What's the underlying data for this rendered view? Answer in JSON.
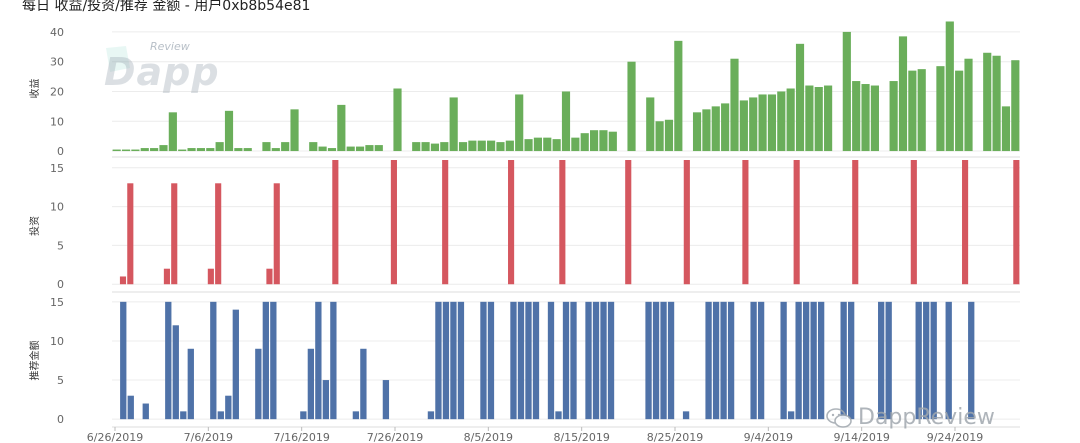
{
  "title": "每日 收益/投资/推荐 金额 - 用户0xb8b54e81",
  "watermark": {
    "top_small": "Review",
    "top_big": "Dapp",
    "bottom": "DappReview"
  },
  "colors": {
    "income": "#6aae5a",
    "invest": "#d5575f",
    "referral": "#4f72a8",
    "grid": "#ececec",
    "axis": "#dcdcdc"
  },
  "chart_data": {
    "type": "bar",
    "x_ticks": [
      "6/26/2019",
      "7/6/2019",
      "7/16/2019",
      "7/26/2019",
      "8/5/2019",
      "8/15/2019",
      "8/25/2019",
      "9/4/2019",
      "9/14/2019",
      "9/24/2019"
    ],
    "panels": [
      {
        "id": "income",
        "ylabel": "收益",
        "yticks": [
          0,
          10,
          20,
          30,
          40
        ],
        "ylim": [
          -2,
          44
        ],
        "values": [
          0.5,
          0.5,
          0.5,
          1,
          1,
          2,
          13,
          0.5,
          1,
          1,
          1,
          3,
          13.5,
          1,
          1,
          0,
          3,
          1,
          3,
          14,
          0,
          3,
          1.5,
          1,
          15.5,
          1.5,
          1.5,
          2,
          2,
          0,
          21,
          0,
          3,
          3,
          2.5,
          3,
          18,
          3,
          3.5,
          3.5,
          3.5,
          3,
          3.5,
          19,
          4,
          4.5,
          4.5,
          4,
          20,
          4.5,
          6,
          7,
          7,
          6.5,
          0,
          30,
          0,
          18,
          10,
          10.5,
          37,
          0,
          13,
          14,
          15,
          16,
          31,
          17,
          18,
          19,
          19,
          20,
          21,
          36,
          22,
          21.5,
          22,
          0,
          40,
          23.5,
          22.5,
          22,
          0,
          23.5,
          38.5,
          27,
          27.5,
          0,
          28.5,
          43.5,
          27,
          31,
          0,
          33,
          32,
          15,
          30.5
        ]
      },
      {
        "id": "invest",
        "ylabel": "投资",
        "yticks": [
          0,
          5,
          10,
          15
        ],
        "ylim": [
          -1,
          16
        ],
        "values": [
          0,
          1,
          13,
          0,
          0,
          0,
          0,
          2,
          13,
          0,
          0,
          0,
          0,
          2,
          13,
          0,
          0,
          0,
          0,
          0,
          0,
          2,
          13,
          0,
          0,
          0,
          0,
          0,
          0,
          0,
          16,
          0,
          0,
          0,
          0,
          0,
          0,
          0,
          16,
          0,
          0,
          0,
          0,
          0,
          0,
          16,
          0,
          0,
          0,
          0,
          0,
          0,
          0,
          0,
          16,
          0,
          0,
          0,
          0,
          0,
          0,
          16,
          0,
          0,
          0,
          0,
          0,
          0,
          0,
          0,
          16,
          0,
          0,
          0,
          0,
          0,
          0,
          0,
          16,
          0,
          0,
          0,
          0,
          0,
          0,
          0,
          16,
          0,
          0,
          0,
          0,
          0,
          0,
          16,
          0,
          0,
          0,
          0,
          0,
          0,
          0,
          16,
          0,
          0,
          0,
          0,
          0,
          0,
          0,
          16,
          0,
          0,
          0,
          0,
          0,
          0,
          16,
          0,
          0,
          0,
          0,
          0,
          0,
          16
        ]
      },
      {
        "id": "referral",
        "ylabel": "推荐金额",
        "yticks": [
          0,
          5,
          10,
          15
        ],
        "ylim": [
          -1,
          16
        ],
        "values": [
          0,
          15,
          3,
          0,
          2,
          0,
          0,
          15,
          12,
          1,
          9,
          0,
          0,
          15,
          1,
          3,
          14,
          0,
          0,
          9,
          15,
          15,
          0,
          0,
          0,
          1,
          9,
          15,
          5,
          15,
          0,
          0,
          1,
          9,
          0,
          0,
          5,
          0,
          0,
          0,
          0,
          0,
          1,
          15,
          15,
          15,
          15,
          0,
          0,
          15,
          15,
          0,
          0,
          15,
          15,
          15,
          15,
          0,
          15,
          1,
          15,
          15,
          0,
          15,
          15,
          15,
          15,
          0,
          0,
          0,
          0,
          15,
          15,
          15,
          15,
          0,
          1,
          0,
          0,
          15,
          15,
          15,
          15,
          0,
          0,
          15,
          15,
          0,
          0,
          15,
          1,
          15,
          15,
          15,
          15,
          0,
          0,
          15,
          15,
          0,
          0,
          0,
          15,
          15,
          0,
          0,
          0,
          15,
          15,
          15,
          0,
          15,
          0,
          0,
          15,
          0,
          0,
          0,
          0,
          0,
          0
        ]
      }
    ]
  }
}
